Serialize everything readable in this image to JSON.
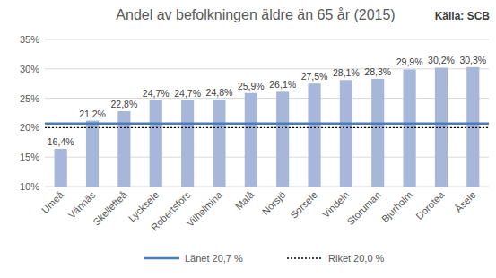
{
  "chart_data": {
    "type": "bar",
    "title": "Andel av befolkningen äldre än 65 år (2015)",
    "source": "Källa: SCB",
    "categories": [
      "Umeå",
      "Vännäs",
      "Skellefteå",
      "Lycksele",
      "Robertsfors",
      "Vilhelmina",
      "Malå",
      "Norsjö",
      "Sorsele",
      "Vindeln",
      "Storuman",
      "Bjurholm",
      "Dorotea",
      "Åsele"
    ],
    "values": [
      16.4,
      21.2,
      22.8,
      24.7,
      24.7,
      24.8,
      25.9,
      26.1,
      27.5,
      28.1,
      28.3,
      29.9,
      30.2,
      30.3
    ],
    "value_labels": [
      "16,4%",
      "21,2%",
      "22,8%",
      "24,7%",
      "24,7%",
      "24,8%",
      "25,9%",
      "26,1%",
      "27,5%",
      "28,1%",
      "28,3%",
      "29,9%",
      "30,2%",
      "30,3%"
    ],
    "color": "#a7b7d9",
    "data_labels": true,
    "ylim": [
      10,
      35
    ],
    "yticks": [
      {
        "value": 10,
        "label": "10%"
      },
      {
        "value": 15,
        "label": "15%"
      },
      {
        "value": 20,
        "label": "20%"
      },
      {
        "value": 25,
        "label": "25%"
      },
      {
        "value": 30,
        "label": "30%"
      },
      {
        "value": 35,
        "label": "35%"
      }
    ],
    "grid": true,
    "legend": "bottom",
    "reference_lines": [
      {
        "name": "Länet 20,7 %",
        "value": 20.7,
        "color": "#4a7ebb",
        "line_style": "solid"
      },
      {
        "name": "Riket 20,0 %",
        "value": 20.0,
        "color": "#000000",
        "line_style": "dotted"
      }
    ]
  }
}
